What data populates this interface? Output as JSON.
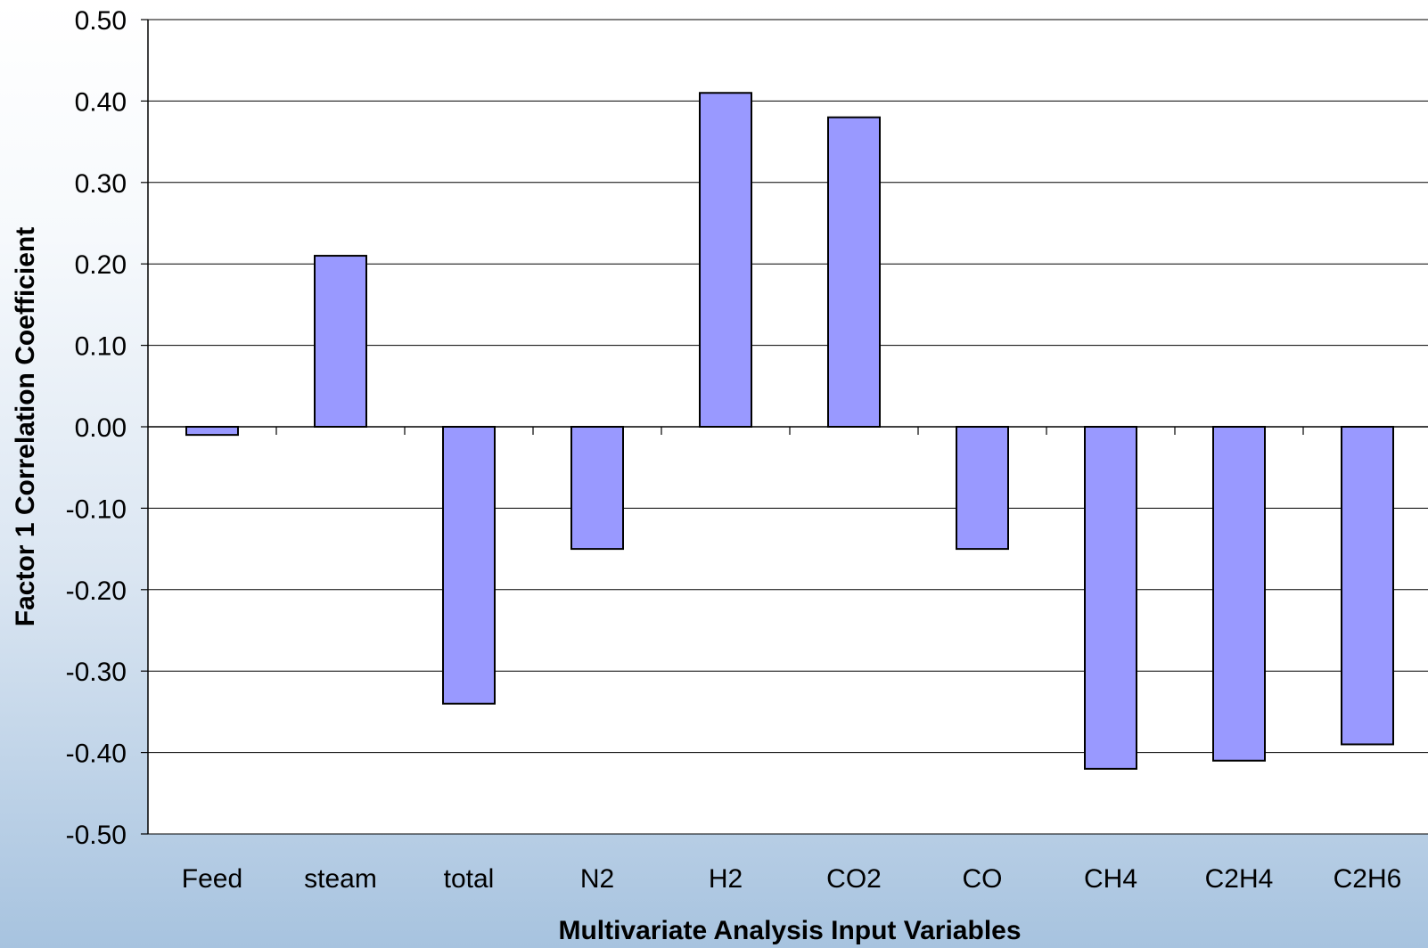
{
  "chart_data": {
    "type": "bar",
    "title": "",
    "xlabel": "Multivariate Analysis Input Variables",
    "ylabel": "Factor 1 Correlation Coefficient",
    "categories": [
      "Feed",
      "steam",
      "total",
      "N2",
      "H2",
      "CO2",
      "CO",
      "CH4",
      "C2H4",
      "C2H6"
    ],
    "values": [
      -0.01,
      0.21,
      -0.34,
      -0.15,
      0.41,
      0.38,
      -0.15,
      -0.42,
      -0.41,
      -0.39
    ],
    "ylim": [
      -0.5,
      0.5
    ],
    "yticks": [
      "0.50",
      "0.40",
      "0.30",
      "0.20",
      "0.10",
      "0.00",
      "-0.10",
      "-0.20",
      "-0.30",
      "-0.40",
      "-0.50"
    ],
    "grid": true,
    "legend": "none",
    "colors": {
      "bar_fill": "#9999ff",
      "bar_stroke": "#000000",
      "plot_background": "#ffffff",
      "gridline": "#000000"
    }
  }
}
